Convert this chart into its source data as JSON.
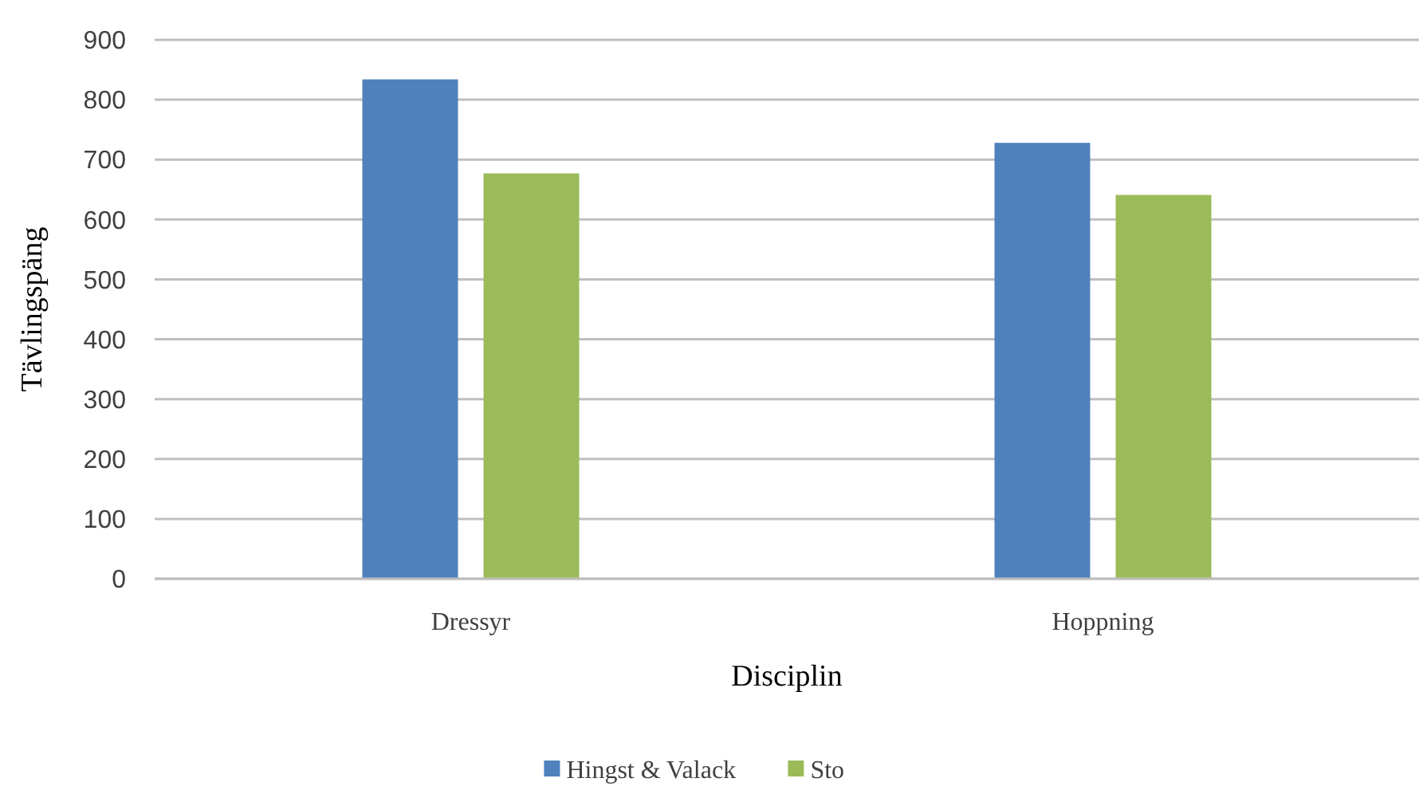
{
  "chart_data": {
    "type": "bar",
    "xlabel": "Disciplin",
    "ylabel": "Tävlingspäng",
    "categories": [
      "Dressyr",
      "Hoppning"
    ],
    "series": [
      {
        "name": "Hingst & Valack",
        "color": "#4f81bd",
        "values": [
          834,
          728
        ]
      },
      {
        "name": "Sto",
        "color": "#9bbb59",
        "values": [
          677,
          641
        ]
      }
    ],
    "ylim": [
      0,
      900
    ],
    "yticks": [
      0,
      100,
      200,
      300,
      400,
      500,
      600,
      700,
      800,
      900
    ],
    "grid": "y",
    "legend": "bottom"
  }
}
